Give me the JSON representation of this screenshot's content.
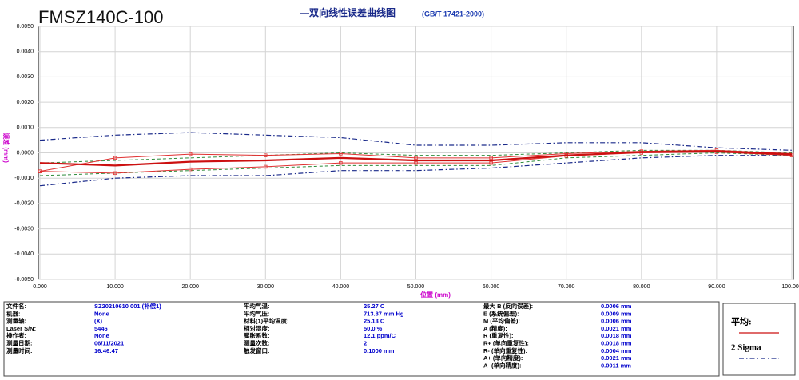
{
  "chart_data": {
    "type": "line",
    "machine": "FMSZ140C-100",
    "title": "—双向线性误差曲线图",
    "standard": "(GB/T 17421-2000)",
    "xlabel": "位置 (mm)",
    "ylabel": "误差 (mm)",
    "x": [
      0,
      10,
      20,
      30,
      40,
      50,
      60,
      70,
      80,
      90,
      100
    ],
    "xlim": [
      0,
      100
    ],
    "ylim": [
      -0.005,
      0.005
    ],
    "xticks": [
      {
        "value": 0,
        "label": "0.000"
      },
      {
        "value": 10,
        "label": "10.000"
      },
      {
        "value": 20,
        "label": "20.000"
      },
      {
        "value": 30,
        "label": "30.000"
      },
      {
        "value": 40,
        "label": "40.000"
      },
      {
        "value": 50,
        "label": "50.000"
      },
      {
        "value": 60,
        "label": "60.000"
      },
      {
        "value": 70,
        "label": "70.000"
      },
      {
        "value": 80,
        "label": "80.000"
      },
      {
        "value": 90,
        "label": "90.000"
      },
      {
        "value": 100,
        "label": "100.000"
      }
    ],
    "yticks": [
      {
        "value": 0.005,
        "label": "0.0050"
      },
      {
        "value": 0.004,
        "label": "0.0040"
      },
      {
        "value": 0.003,
        "label": "0.0030"
      },
      {
        "value": 0.002,
        "label": "0.0020"
      },
      {
        "value": 0.001,
        "label": "0.0010"
      },
      {
        "value": 0,
        "label": "0.0000"
      },
      {
        "value": -0.001,
        "label": "-0.0010"
      },
      {
        "value": -0.002,
        "label": "-0.0020"
      },
      {
        "value": -0.003,
        "label": "-0.0030"
      },
      {
        "value": -0.004,
        "label": "-0.0040"
      },
      {
        "value": -0.005,
        "label": "-0.0050"
      }
    ],
    "grid": true,
    "series": [
      {
        "name": "2 Sigma",
        "color": "#1a2a8a",
        "style": "dashdot",
        "values": [
          0.0005,
          0.0007,
          0.0008,
          0.0007,
          0.0006,
          0.0003,
          0.0003,
          0.0004,
          0.0004,
          0.0002,
          0.0001
        ]
      },
      {
        "color": "#1a2a8a",
        "style": "dashdot",
        "values": [
          -0.0013,
          -0.001,
          -0.0009,
          -0.0009,
          -0.0007,
          -0.0007,
          -0.0006,
          -0.0004,
          -0.0002,
          -0.0001,
          -0.0001
        ]
      },
      {
        "color": "#2e8b3a",
        "style": "dashed",
        "values": [
          -0.0004,
          -0.0003,
          -0.0002,
          -0.0001,
          0,
          -0.0001,
          -0.0001,
          0,
          0.0001,
          0.0001,
          0
        ]
      },
      {
        "color": "#2e8b3a",
        "style": "dashed",
        "values": [
          -0.0009,
          -0.0008,
          -0.0007,
          -0.0006,
          -0.0005,
          -0.0005,
          -0.0005,
          -0.0002,
          -0.0001,
          0,
          -0.0001
        ]
      },
      {
        "color": "#e03030",
        "style": "thin",
        "markers": true,
        "values": [
          -0.00073,
          -0.0002,
          -5e-05,
          -0.0001,
          -3e-05,
          -0.0002,
          -0.0002,
          -3e-05,
          6e-05,
          0.0001,
          -3e-05
        ]
      },
      {
        "color": "#e03030",
        "style": "thin",
        "markers": true,
        "values": [
          -0.00073,
          -0.0008,
          -0.00065,
          -0.00055,
          -0.0004,
          -0.0004,
          -0.0004,
          -0.00012,
          0,
          3e-05,
          -0.0001
        ]
      },
      {
        "name": "平均:",
        "color": "#cc1010",
        "style": "thick",
        "values": [
          -0.0004,
          -0.0005,
          -0.00035,
          -0.0003,
          -0.0002,
          -0.0003,
          -0.0003,
          -0.0001,
          3e-05,
          6e-05,
          -6e-05
        ]
      }
    ],
    "legend": [
      6,
      0
    ]
  },
  "info": [
    [
      [
        "文件名:",
        "SZ20210610 001 (补偿1)"
      ],
      [
        "机器:",
        "None"
      ],
      [
        "测量轴:",
        "(X)"
      ],
      [
        "Laser S/N:",
        "5446"
      ],
      [
        "操作者:",
        "None"
      ],
      [
        "测量日期:",
        "06/11/2021"
      ],
      [
        "测量时间:",
        "16:46:47"
      ]
    ],
    [
      [
        "平均气温:",
        "25.27 C"
      ],
      [
        "平均气压:",
        "713.87 mm Hg"
      ],
      [
        "材料(1)平均温度:",
        "25.13 C"
      ],
      [
        "相对湿度:",
        "50.0 %"
      ],
      [
        "膨胀系数:",
        "12.1 ppm/C"
      ],
      [
        "测量次数:",
        "2"
      ],
      [
        "触发窗口:",
        "0.1000 mm"
      ]
    ],
    [
      [
        "最大 B (反向误差):",
        "0.0006 mm"
      ],
      [
        "E (系统偏差):",
        "0.0009 mm"
      ],
      [
        "M (平均偏差):",
        "0.0006 mm"
      ],
      [
        "A (精度):",
        "0.0021 mm"
      ],
      [
        "R (重复性):",
        "0.0018 mm"
      ],
      [
        "R+ (单向重复性):",
        "0.0018 mm"
      ],
      [
        "R- (单向重复性):",
        "0.0004 mm"
      ],
      [
        "A+ (单向精度):",
        "0.0021 mm"
      ],
      [
        "A- (单向精度):",
        "0.0011 mm"
      ]
    ]
  ]
}
